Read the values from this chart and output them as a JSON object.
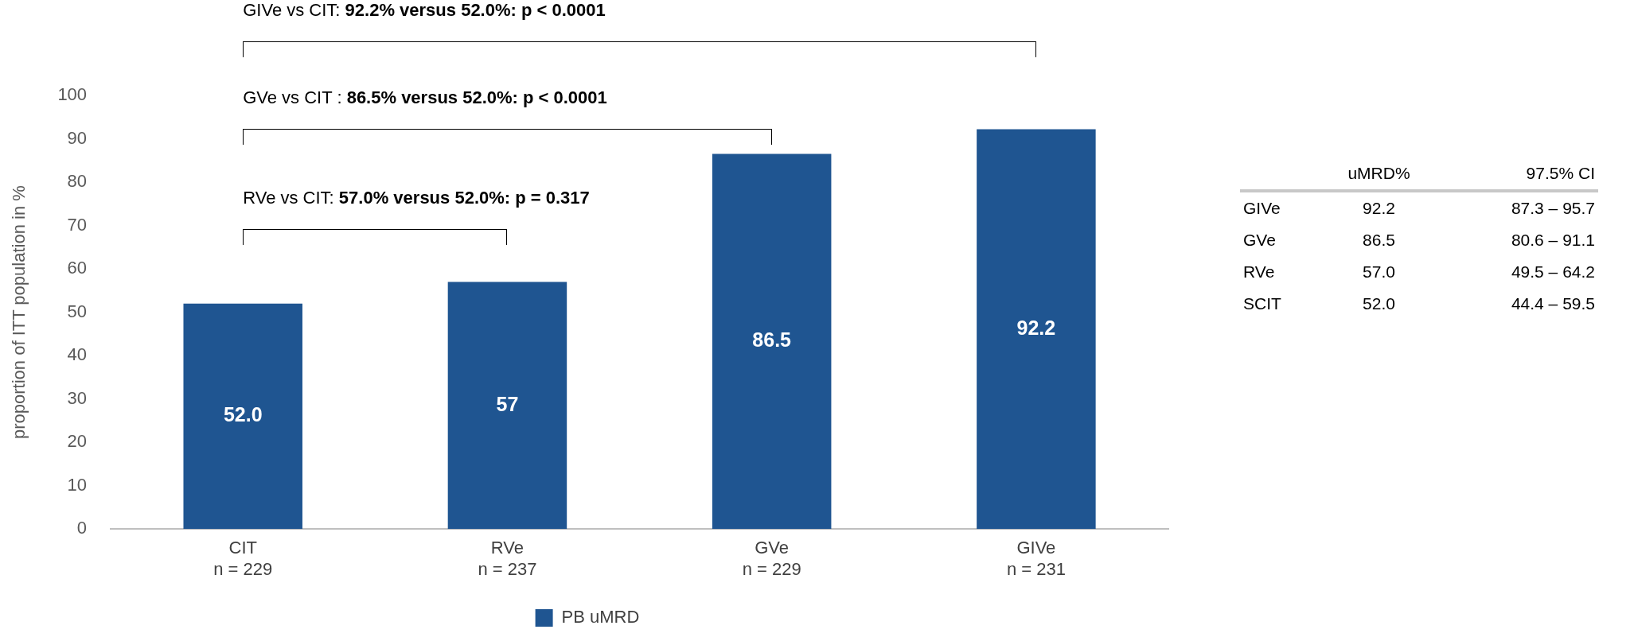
{
  "chart_data": [
    {
      "type": "bar",
      "categories": [
        "CIT\nn = 229",
        "RVe\nn = 237",
        "GVe\nn = 229",
        "GIVe\nn = 231"
      ],
      "series": [
        {
          "name": "PB uMRD",
          "color": "#1f5591",
          "values": [
            52.0,
            57,
            86.5,
            92.2
          ],
          "value_labels": [
            "52.0",
            "57",
            "86.5",
            "92.2"
          ]
        }
      ],
      "ylabel": "proportion of ITT population in %",
      "ylim": [
        0,
        100
      ],
      "yticks": [
        0,
        10,
        20,
        30,
        40,
        50,
        60,
        70,
        80,
        90,
        100
      ],
      "grid": false,
      "legend": "bottom",
      "annotations": [
        "RVe vs CIT: 57.0% versus 52.0%: p = 0.317",
        "GVe vs CIT : 86.5% versus 52.0%: p < 0.0001",
        "GIVe vs CIT: 92.2% versus 52.0%: p < 0.0001"
      ]
    },
    {
      "type": "other",
      "annotations": [
        "uMRD%",
        "97.5% CI",
        "GIVe",
        "92.2",
        "87.3 – 95.7",
        "GVe",
        "86.5",
        "80.6 – 91.1",
        "RVe",
        "57.0",
        "49.5 – 64.2",
        "SCIT",
        "52.0",
        "44.4 – 59.5"
      ]
    }
  ]
}
